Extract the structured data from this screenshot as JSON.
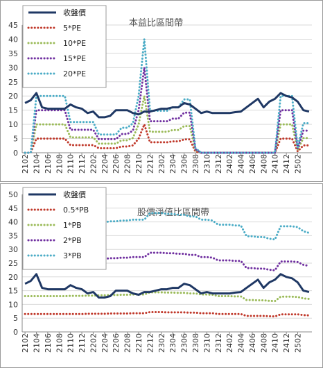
{
  "chart_data": [
    {
      "type": "line",
      "title": "本益比區間帶",
      "xlabel": "",
      "ylabel": "",
      "ylim": [
        0,
        45
      ],
      "yticks": [
        0,
        5,
        10,
        15,
        20,
        25,
        30,
        35,
        40,
        45
      ],
      "xtick_labels": [
        "2102",
        "2104",
        "2106",
        "2108",
        "2110",
        "2112",
        "2202",
        "2204",
        "2206",
        "2208",
        "2210",
        "2212",
        "2302",
        "2304",
        "2306",
        "2308",
        "2310",
        "2312",
        "2402",
        "2404",
        "2406",
        "2408",
        "2410",
        "2412",
        "2502"
      ],
      "grid": true,
      "legend_position": "top-left",
      "series": [
        {
          "name": "收盤價",
          "color": "#1f3864",
          "style": "solid",
          "values": [
            17.5,
            18.5,
            21,
            16,
            15.5,
            15.5,
            15.5,
            15.5,
            17,
            16,
            15.5,
            14,
            14.5,
            12.5,
            12.5,
            13,
            15,
            15,
            15,
            14,
            13.5,
            14.5,
            14.5,
            15,
            15.5,
            15.5,
            16,
            16,
            17.5,
            17,
            15.5,
            14,
            14.5,
            14,
            14,
            14,
            14,
            14.3,
            14.5,
            16,
            17.5,
            19,
            16,
            18,
            19,
            21,
            20,
            19.5,
            18,
            15,
            14.5
          ]
        },
        {
          "name": "5*PE",
          "color": "#c0392b",
          "style": "dotted",
          "values": [
            0,
            0,
            5,
            5,
            5,
            5,
            5,
            5,
            2.7,
            2.7,
            2.7,
            2.7,
            2.7,
            1.6,
            1.6,
            1.6,
            1.6,
            2.2,
            2.2,
            2.6,
            5,
            10,
            3.7,
            3.7,
            3.7,
            3.7,
            4,
            4,
            4.7,
            4.7,
            0.4,
            0,
            0,
            0,
            0,
            0,
            0,
            0,
            0,
            0,
            0,
            0,
            0,
            0,
            0,
            5,
            5,
            5,
            0.5,
            2.6,
            2.6
          ]
        },
        {
          "name": "10*PE",
          "color": "#9bbb59",
          "style": "dotted",
          "values": [
            0,
            0,
            10,
            10,
            10,
            10,
            10,
            10,
            5.4,
            5.4,
            5.4,
            5.4,
            5.4,
            3.2,
            3.2,
            3.2,
            3.2,
            4.4,
            4.4,
            5.2,
            10,
            20,
            7.4,
            7.4,
            7.4,
            7.4,
            8,
            8,
            9.4,
            9.4,
            0.8,
            0,
            0,
            0,
            0,
            0,
            0,
            0,
            0,
            0,
            0,
            0,
            0,
            0,
            0,
            10,
            10,
            10,
            1,
            5.2,
            5.2
          ]
        },
        {
          "name": "15*PE",
          "color": "#7030a0",
          "style": "dotted",
          "values": [
            0,
            0,
            15,
            15,
            15,
            15,
            15,
            15,
            8.1,
            8.1,
            8.1,
            8.1,
            8.1,
            4.8,
            4.8,
            4.8,
            4.8,
            6.6,
            6.6,
            7.8,
            15,
            30,
            11.1,
            11.1,
            11.1,
            11.1,
            12,
            12,
            14.1,
            14.1,
            1.2,
            0,
            0,
            0,
            0,
            0,
            0,
            0,
            0,
            0,
            0,
            0,
            0,
            0,
            0,
            15,
            15,
            15,
            1.5,
            7.8,
            7.8
          ]
        },
        {
          "name": "20*PE",
          "color": "#4bacc6",
          "style": "dotted",
          "values": [
            0,
            0,
            20,
            20,
            20,
            20,
            20,
            20,
            10.8,
            10.8,
            10.8,
            10.8,
            10.8,
            6.4,
            6.4,
            6.4,
            6.4,
            8.8,
            8.8,
            10.4,
            20,
            40,
            14.8,
            14.8,
            14.8,
            14.8,
            16,
            16,
            18.8,
            18.8,
            1.6,
            0,
            0,
            0,
            0,
            0,
            0,
            0,
            0,
            0,
            0,
            0,
            0,
            0,
            0,
            20,
            20,
            20,
            2,
            10.4,
            10.4
          ]
        }
      ]
    },
    {
      "type": "line",
      "title": "股價淨值比區間帶",
      "xlabel": "",
      "ylabel": "",
      "ylim": [
        0,
        50
      ],
      "yticks": [
        0,
        5,
        10,
        15,
        20,
        25,
        30,
        35,
        40,
        45,
        50
      ],
      "xtick_labels": [
        "2102",
        "2104",
        "2106",
        "2108",
        "2110",
        "2112",
        "2202",
        "2204",
        "2206",
        "2208",
        "2210",
        "2212",
        "2302",
        "2304",
        "2306",
        "2308",
        "2310",
        "2312",
        "2402",
        "2404",
        "2406",
        "2408",
        "2410",
        "2412",
        "2502"
      ],
      "grid": true,
      "legend_position": "top-left",
      "series": [
        {
          "name": "收盤價",
          "color": "#1f3864",
          "style": "solid",
          "values": [
            17.5,
            18.5,
            21,
            16,
            15.5,
            15.5,
            15.5,
            15.5,
            17,
            16,
            15.5,
            14,
            14.5,
            12.5,
            12.5,
            13,
            15,
            15,
            15,
            14,
            13.5,
            14.5,
            14.5,
            15,
            15.5,
            15.5,
            16,
            16,
            17.5,
            17,
            15.5,
            14,
            14.5,
            14,
            14,
            14,
            14,
            14.3,
            14.5,
            16,
            17.5,
            19,
            16,
            18,
            19,
            21,
            20,
            19.5,
            18,
            15,
            14.5
          ]
        },
        {
          "name": "0.5*PB",
          "color": "#c0392b",
          "style": "dotted",
          "values": [
            6.5,
            6.5,
            6.5,
            6.5,
            6.5,
            6.5,
            6.5,
            6.5,
            6.5,
            6.5,
            6.5,
            6.6,
            6.6,
            6.6,
            6.6,
            6.7,
            6.7,
            6.7,
            6.7,
            6.8,
            6.8,
            6.8,
            7.2,
            7.2,
            7.2,
            7.1,
            7.1,
            7.1,
            7.1,
            7,
            7,
            6.8,
            6.8,
            6.8,
            6.5,
            6.5,
            6.5,
            6.5,
            6.5,
            5.8,
            5.8,
            5.8,
            5.8,
            5.7,
            5.6,
            6.4,
            6.4,
            6.4,
            6.4,
            6.1,
            6
          ]
        },
        {
          "name": "1*PB",
          "color": "#9bbb59",
          "style": "dotted",
          "values": [
            13,
            13,
            13,
            13,
            13,
            13,
            13,
            13,
            13.1,
            13.1,
            13.1,
            13.2,
            13.2,
            13.3,
            13.3,
            13.4,
            13.4,
            13.5,
            13.5,
            13.6,
            13.6,
            13.6,
            14.4,
            14.4,
            14.4,
            14.3,
            14.3,
            14.2,
            14.2,
            14,
            14,
            13.6,
            13.6,
            13.5,
            13,
            13,
            13,
            12.9,
            12.9,
            11.6,
            11.6,
            11.5,
            11.5,
            11.3,
            11.2,
            12.8,
            12.8,
            12.8,
            12.7,
            12.2,
            12
          ]
        },
        {
          "name": "2*PB",
          "color": "#7030a0",
          "style": "dotted",
          "values": [
            26,
            26,
            26,
            26,
            26,
            26,
            26,
            26,
            26.2,
            26.2,
            26.2,
            26.4,
            26.4,
            26.6,
            26.6,
            26.8,
            26.8,
            27,
            27,
            27.2,
            27.2,
            27.2,
            28.8,
            28.8,
            28.8,
            28.6,
            28.6,
            28.4,
            28.4,
            28,
            28,
            27.2,
            27.2,
            27,
            26,
            26,
            26,
            25.8,
            25.8,
            23.2,
            23.2,
            23,
            23,
            22.6,
            22.4,
            25.6,
            25.6,
            25.6,
            25.4,
            24.4,
            24
          ]
        },
        {
          "name": "3*PB",
          "color": "#4bacc6",
          "style": "dotted",
          "values": [
            39,
            39,
            39,
            39,
            39,
            39,
            39,
            39,
            39.3,
            39.3,
            39.3,
            39.6,
            39.6,
            39.9,
            39.9,
            40.2,
            40.2,
            40.5,
            40.5,
            40.8,
            40.8,
            40.8,
            43.2,
            43.2,
            43.2,
            42.9,
            42.9,
            42.6,
            42.6,
            42,
            42,
            40.8,
            40.8,
            40.5,
            39,
            39,
            39,
            38.7,
            38.7,
            34.8,
            34.8,
            34.5,
            34.5,
            33.9,
            33.6,
            38.4,
            38.4,
            38.4,
            38.1,
            36.6,
            36
          ]
        }
      ]
    }
  ]
}
